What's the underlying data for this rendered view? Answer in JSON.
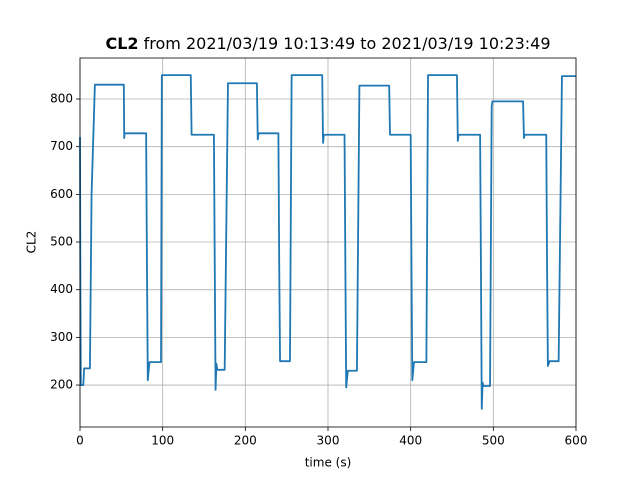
{
  "chart_data": {
    "type": "line",
    "title": {
      "name": "CL2",
      "text": "from 2021/03/19 10:13:49 to 2021/03/19 10:23:49"
    },
    "xlabel": "time (s)",
    "ylabel": "CL2",
    "x": [
      0,
      0.5,
      1,
      4,
      5,
      12,
      14,
      18,
      53,
      53.5,
      54,
      80,
      81,
      82,
      84,
      98,
      99,
      134,
      135,
      162,
      163,
      164,
      165,
      166,
      175,
      179,
      214,
      215,
      216,
      240,
      241,
      242,
      254,
      256,
      293,
      294,
      295,
      320,
      321,
      322,
      324,
      335,
      338,
      374,
      375,
      400,
      401,
      402,
      404,
      419,
      421,
      456,
      457,
      458,
      484,
      485,
      486,
      487,
      488,
      490,
      496,
      498,
      499,
      536,
      537,
      538,
      564,
      565,
      566,
      568,
      579,
      583,
      600
    ],
    "series": [
      {
        "name": "CL2",
        "color": "#1f77b4",
        "values": [
          720,
          400,
          200,
          200,
          235,
          235,
          600,
          830,
          830,
          718,
          728,
          728,
          450,
          210,
          248,
          248,
          850,
          850,
          725,
          725,
          450,
          190,
          245,
          232,
          232,
          833,
          833,
          715,
          728,
          728,
          450,
          250,
          250,
          850,
          850,
          708,
          725,
          725,
          450,
          195,
          230,
          230,
          828,
          828,
          725,
          725,
          450,
          210,
          248,
          248,
          850,
          850,
          712,
          725,
          725,
          450,
          150,
          205,
          198,
          198,
          198,
          785,
          795,
          795,
          718,
          725,
          725,
          450,
          240,
          250,
          250,
          848,
          848
        ]
      }
    ],
    "xlim": [
      0,
      600
    ],
    "xticks": [
      0,
      100,
      200,
      300,
      400,
      500,
      600
    ],
    "ylim": [
      112,
      886
    ],
    "yticks": [
      200,
      300,
      400,
      500,
      600,
      700,
      800
    ],
    "grid": true
  }
}
